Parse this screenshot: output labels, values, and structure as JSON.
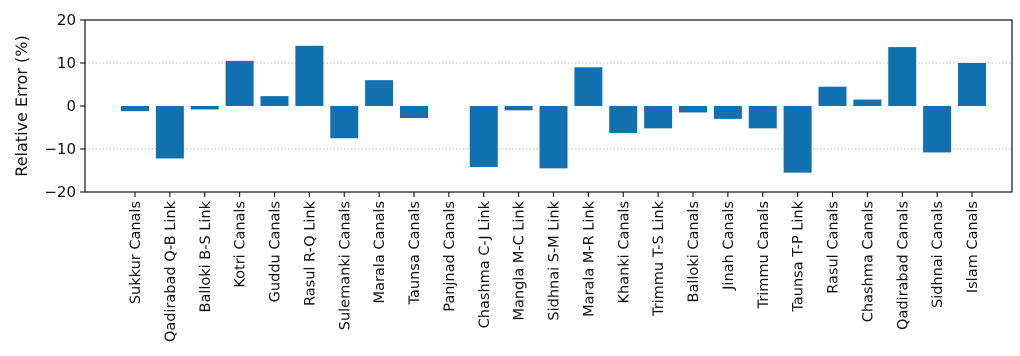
{
  "chart_data": {
    "type": "bar",
    "title": "",
    "xlabel": "",
    "ylabel": "Relative Error (%)",
    "ylim": [
      -20,
      20
    ],
    "yticks": [
      -20,
      -10,
      0,
      10,
      20
    ],
    "grid": "horizontal dotted at 10 and -10",
    "bar_color": "#1070b0",
    "categories": [
      "Sukkur Canals",
      "Qadirabad Q-B Link",
      "Balloki B-S Link",
      "Kotri Canals",
      "Guddu Canals",
      "Rasul R-Q Link",
      "Sulemanki Canals",
      "Marala Canals",
      "Taunsa Canals",
      "Panjnad Canals",
      "Chashma C-J Link",
      "Mangla M-C Link",
      "Sidhnai S-M Link",
      "Marala M-R Link",
      "Khanki Canals",
      "Trimmu T-S Link",
      "Balloki Canals",
      "Jinah Canals",
      "Trimmu Canals",
      "Taunsa T-P Link",
      "Rasul Canals",
      "Chashma Canals",
      "Qadirabad Canals",
      "Sidhnai Canals",
      "Islam Canals"
    ],
    "values": [
      -1.2,
      -12.2,
      -0.8,
      10.5,
      2.3,
      14.0,
      -7.5,
      6.0,
      -2.8,
      0.0,
      -14.2,
      -1.0,
      -14.5,
      9.0,
      -6.3,
      -5.2,
      -1.5,
      -3.0,
      -5.2,
      -15.5,
      4.5,
      1.5,
      13.7,
      -10.8,
      10.0
    ]
  }
}
